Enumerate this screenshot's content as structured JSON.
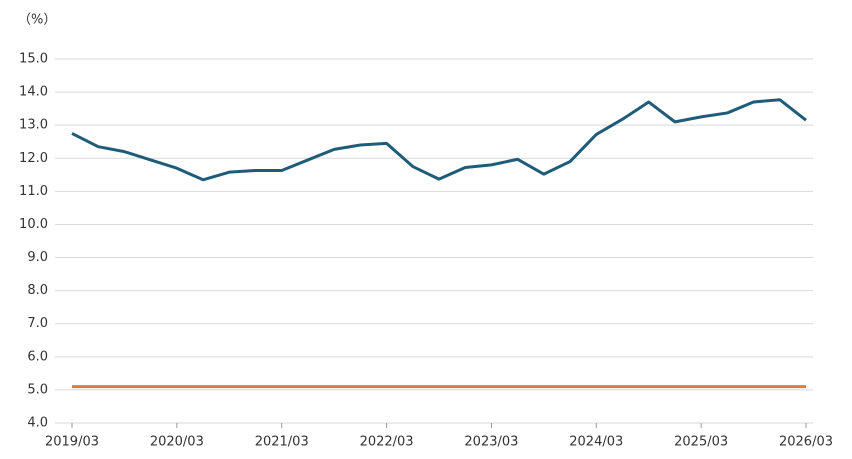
{
  "chart_data": {
    "type": "line",
    "y_unit": "（%）",
    "x": [
      "2019/03",
      "2019/06",
      "2019/09",
      "2019/12",
      "2020/03",
      "2020/06",
      "2020/09",
      "2020/12",
      "2021/03",
      "2021/06",
      "2021/09",
      "2021/12",
      "2022/03",
      "2022/06",
      "2022/09",
      "2022/12",
      "2023/03",
      "2023/06",
      "2023/09",
      "2023/12",
      "2024/03",
      "2024/06",
      "2024/09",
      "2024/12",
      "2025/03",
      "2025/06",
      "2025/09",
      "2025/12",
      "2026/03"
    ],
    "series": [
      {
        "color": "#1f5c7a",
        "values": [
          12.75,
          12.35,
          12.2,
          11.95,
          11.7,
          11.35,
          11.58,
          11.63,
          11.63,
          11.95,
          12.27,
          12.4,
          12.45,
          11.75,
          11.37,
          11.72,
          11.8,
          11.97,
          11.52,
          11.9,
          12.72,
          13.18,
          13.7,
          13.1,
          13.25,
          13.37,
          13.7,
          13.77,
          13.15
        ]
      },
      {
        "color": "#e07b39",
        "values": [
          5.1,
          5.1,
          5.1,
          5.1,
          5.1,
          5.1,
          5.1,
          5.1,
          5.1,
          5.1,
          5.1,
          5.1,
          5.1,
          5.1,
          5.1,
          5.1,
          5.1,
          5.1,
          5.1,
          5.1,
          5.1,
          5.1,
          5.1,
          5.1,
          5.1,
          5.1,
          5.1,
          5.1,
          5.1
        ]
      }
    ],
    "ylim": [
      4,
      15
    ],
    "yticks": [
      {
        "value": 4,
        "label": "4.0"
      },
      {
        "value": 5,
        "label": "5.0"
      },
      {
        "value": 6,
        "label": "6.0"
      },
      {
        "value": 7,
        "label": "7.0"
      },
      {
        "value": 8,
        "label": "8.0"
      },
      {
        "value": 9,
        "label": "9.0"
      },
      {
        "value": 10,
        "label": "10.0"
      },
      {
        "value": 11,
        "label": "11.0"
      },
      {
        "value": 12,
        "label": "12.0"
      },
      {
        "value": 13,
        "label": "13.0"
      },
      {
        "value": 14,
        "label": "14.0"
      },
      {
        "value": 15,
        "label": "15.0"
      }
    ],
    "grid": true
  }
}
